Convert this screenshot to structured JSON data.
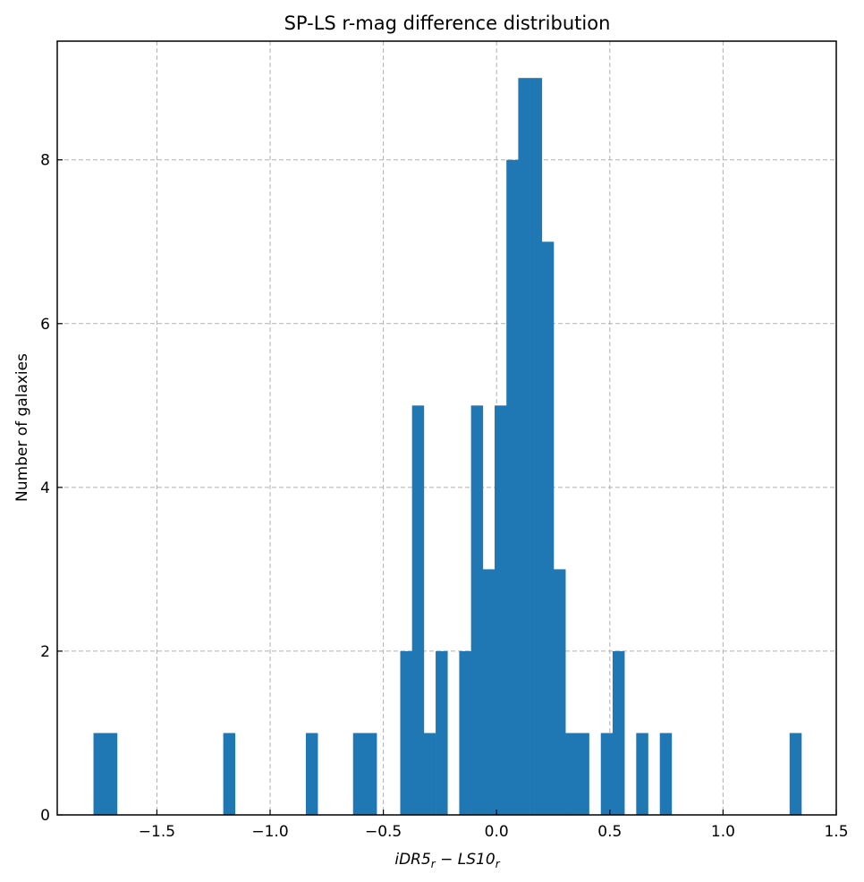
{
  "chart_data": {
    "type": "histogram",
    "title": "SP-LS r-mag difference distribution",
    "xlabel": {
      "parts": [
        {
          "text": "iDR5",
          "style": "italic"
        },
        {
          "text": "r",
          "style": "italic-sub"
        },
        {
          "text": " − ",
          "style": "normal"
        },
        {
          "text": "LS10",
          "style": "italic"
        },
        {
          "text": "r",
          "style": "italic-sub"
        }
      ],
      "plain": "iDR5_r − LS10_r"
    },
    "ylabel": "Number of galaxies",
    "xlim": [
      -1.94,
      1.5
    ],
    "ylim": [
      0,
      9.45
    ],
    "xticks": [
      -1.5,
      -1.0,
      -0.5,
      0.0,
      0.5,
      1.0,
      1.5
    ],
    "xtick_labels": [
      "−1.5",
      "−1.0",
      "−0.5",
      "0.0",
      "0.5",
      "1.0",
      "1.5"
    ],
    "yticks": [
      0,
      2,
      4,
      6,
      8
    ],
    "ytick_labels": [
      "0",
      "2",
      "4",
      "6",
      "8"
    ],
    "grid": true,
    "bar_color": "#1f77b4",
    "bins": {
      "start": -1.78,
      "width": 0.0521,
      "counts": [
        1,
        1,
        0,
        0,
        0,
        0,
        0,
        0,
        0,
        0,
        0,
        1,
        0,
        0,
        0,
        0,
        0,
        0,
        1,
        0,
        0,
        0,
        1,
        1,
        0,
        0,
        2,
        5,
        1,
        2,
        0,
        2,
        5,
        3,
        5,
        8,
        9,
        9,
        7,
        3,
        1,
        1,
        0,
        1,
        2,
        0,
        1,
        0,
        1,
        0,
        0,
        0,
        0,
        0,
        0,
        0,
        0,
        0,
        0,
        1
      ]
    }
  }
}
